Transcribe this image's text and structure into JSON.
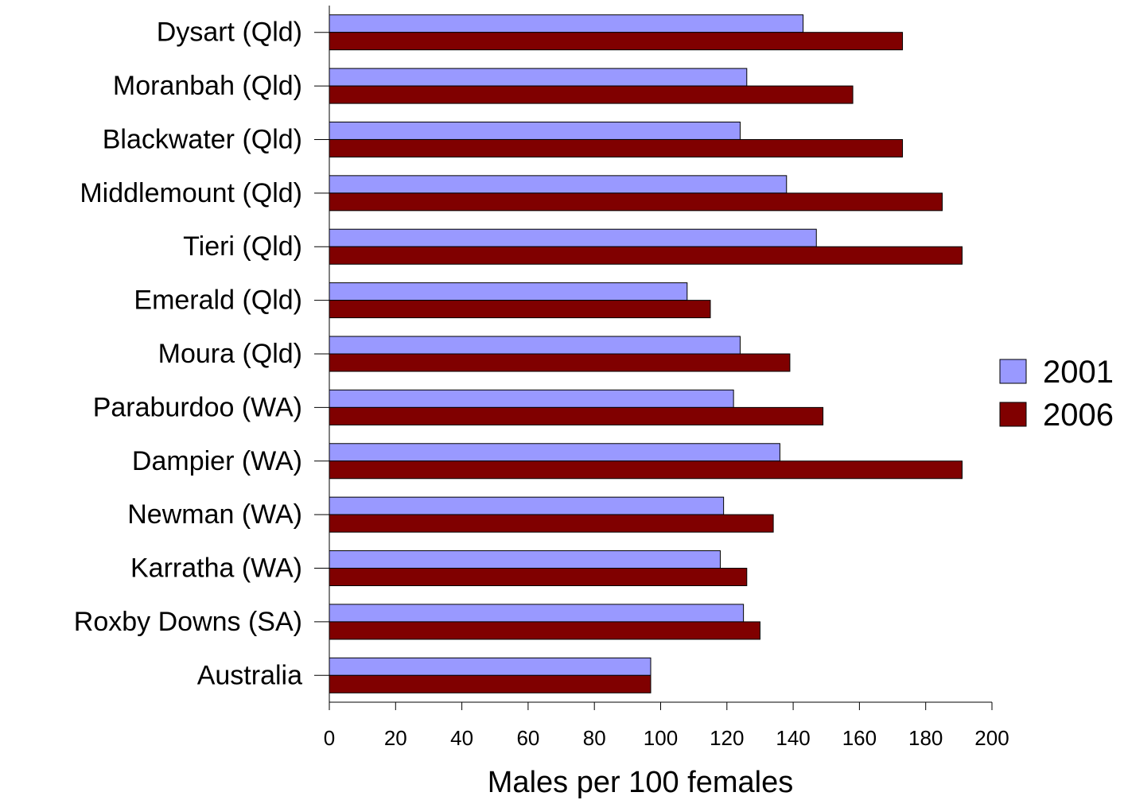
{
  "chart_data": {
    "type": "bar",
    "orientation": "horizontal",
    "categories": [
      "Dysart (Qld)",
      "Moranbah (Qld)",
      "Blackwater (Qld)",
      "Middlemount (Qld)",
      "Tieri (Qld)",
      "Emerald (Qld)",
      "Moura (Qld)",
      "Paraburdoo (WA)",
      "Dampier (WA)",
      "Newman (WA)",
      "Karratha (WA)",
      "Roxby Downs (SA)",
      "Australia"
    ],
    "series": [
      {
        "name": "2001",
        "color": "#9999ff",
        "values": [
          143,
          126,
          124,
          138,
          147,
          108,
          124,
          122,
          136,
          119,
          118,
          125,
          97
        ]
      },
      {
        "name": "2006",
        "color": "#800000",
        "values": [
          173,
          158,
          173,
          185,
          191,
          115,
          139,
          149,
          191,
          134,
          126,
          130,
          97
        ]
      }
    ],
    "title": "",
    "xlabel": "Males per 100 females",
    "ylabel": "",
    "xlim": [
      0,
      200
    ],
    "xticks": [
      "0",
      "20",
      "40",
      "60",
      "80",
      "100",
      "120",
      "140",
      "160",
      "180",
      "200"
    ],
    "grid": false,
    "legend_position": "right"
  }
}
